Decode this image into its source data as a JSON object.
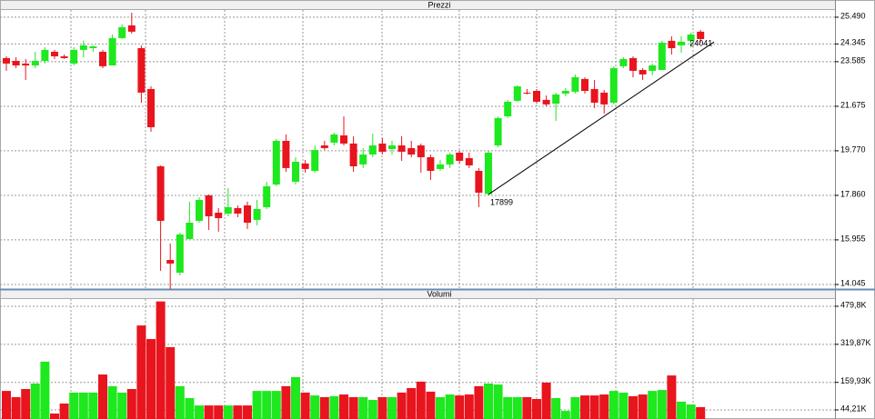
{
  "chart_data": [
    {
      "type": "candlestick",
      "title": "Prezzi",
      "open": [
        23740,
        23620,
        23505,
        23425,
        23620,
        24010,
        23815,
        23505,
        24090,
        24165,
        24010,
        23425,
        24595,
        25140,
        24165,
        22415,
        19105,
        15095,
        14550,
        15990,
        16770,
        17860,
        17120,
        17080,
        17315,
        17430,
        16810,
        17355,
        18325,
        20195,
        18445,
        19225,
        18910,
        20000,
        20120,
        20430,
        20080,
        19185,
        19610,
        20080,
        19845,
        20000,
        19885,
        20000,
        19495,
        18990,
        19185,
        19690,
        19455,
        18910,
        17920,
        20000,
        21245,
        21910,
        22260,
        22335,
        21950,
        21790,
        22220,
        22300,
        22845,
        22415,
        22260,
        21830,
        23390,
        23740,
        23230,
        23195,
        23230,
        24480,
        24285,
        24480,
        24870
      ],
      "high": [
        23815,
        23775,
        23700,
        24010,
        24205,
        24090,
        23895,
        24205,
        24480,
        24285,
        24090,
        24750,
        25180,
        25685,
        24285,
        22530,
        19145,
        15795,
        16265,
        17590,
        17780,
        17900,
        17315,
        18170,
        17430,
        17590,
        17665,
        18445,
        20275,
        20470,
        19495,
        19380,
        20000,
        20195,
        20545,
        21245,
        20390,
        19885,
        20505,
        20315,
        20195,
        20390,
        20195,
        20080,
        19610,
        19380,
        19690,
        19770,
        19690,
        19030,
        19770,
        21245,
        21950,
        22570,
        22415,
        22415,
        22140,
        22260,
        22455,
        23040,
        22920,
        22805,
        22375,
        23390,
        23775,
        23815,
        23310,
        23505,
        24480,
        24670,
        24670,
        24830,
        24945
      ],
      "low": [
        23195,
        23310,
        22805,
        23310,
        23505,
        23700,
        23700,
        23425,
        23775,
        24010,
        23310,
        23425,
        24555,
        24790,
        21830,
        20585,
        14630,
        13850,
        14435,
        15990,
        16690,
        16380,
        16305,
        16965,
        16925,
        16420,
        16575,
        17275,
        18250,
        18870,
        18325,
        18835,
        18835,
        19805,
        20000,
        20000,
        18870,
        19030,
        19495,
        19610,
        19610,
        19340,
        19495,
        18835,
        18520,
        18910,
        19030,
        19225,
        19030,
        17355,
        17899,
        19925,
        21170,
        21870,
        22180,
        21790,
        21675,
        21050,
        22105,
        22220,
        22220,
        21600,
        21365,
        21755,
        23310,
        22920,
        22805,
        23000,
        23230,
        23895,
        23970,
        24205,
        24400
      ],
      "close": [
        23505,
        23425,
        23425,
        23620,
        24090,
        23815,
        23740,
        24090,
        24285,
        24240,
        23390,
        24595,
        25060,
        24870,
        22260,
        20780,
        16770,
        14940,
        16185,
        16690,
        17665,
        16965,
        16885,
        17355,
        17080,
        16690,
        17275,
        18250,
        20195,
        19030,
        19300,
        18990,
        19805,
        19885,
        20470,
        20080,
        19105,
        19610,
        20000,
        19730,
        20000,
        19730,
        19610,
        19495,
        18910,
        19185,
        19610,
        19340,
        19145,
        17975,
        19690,
        21170,
        21870,
        22530,
        22220,
        21870,
        21755,
        22180,
        22335,
        22920,
        22335,
        21830,
        21755,
        23310,
        23700,
        23195,
        23040,
        23425,
        24400,
        24165,
        24440,
        24750,
        24555
      ],
      "up_color": "#1ee81e",
      "down_color": "#e8141e",
      "ylim": [
        13850,
        25760
      ],
      "yticks": [
        {
          "value": 25490,
          "label": "25.490"
        },
        {
          "value": 24345,
          "label": "24.345"
        },
        {
          "value": 23585,
          "label": "23.585"
        },
        {
          "value": 21675,
          "label": "21.675"
        },
        {
          "value": 19770,
          "label": "19.770"
        },
        {
          "value": 17860,
          "label": "17.860"
        },
        {
          "value": 15955,
          "label": "15.955"
        },
        {
          "value": 14045,
          "label": "14.045"
        }
      ],
      "grid": true,
      "annotations": [
        {
          "candle": 50,
          "value": 17899
        },
        {
          "candle": 72,
          "value": 24041
        }
      ]
    },
    {
      "type": "volume",
      "title": "Volumi",
      "values": [
        124000,
        98000,
        132000,
        155000,
        247000,
        29000,
        71000,
        117000,
        117000,
        117000,
        193000,
        144000,
        117000,
        132000,
        399000,
        342000,
        500000,
        308000,
        144000,
        94000,
        63000,
        63000,
        63000,
        63000,
        63000,
        63000,
        124000,
        124000,
        124000,
        144000,
        182000,
        117000,
        105000,
        98000,
        102000,
        109000,
        98000,
        98000,
        86000,
        98000,
        98000,
        117000,
        136000,
        163000,
        121000,
        98000,
        109000,
        105000,
        109000,
        144000,
        155000,
        151000,
        98000,
        98000,
        98000,
        90000,
        159000,
        94000,
        40000,
        98000,
        105000,
        105000,
        109000,
        124000,
        117000,
        102000,
        109000,
        124000,
        128000,
        189000,
        79000,
        67000,
        56000
      ],
      "ylim": [
        6000,
        506400
      ],
      "yticks": [
        {
          "value": 479800,
          "label": "479,8K"
        },
        {
          "value": 319870,
          "label": "319,87K"
        },
        {
          "value": 159930,
          "label": "159,93K"
        },
        {
          "value": 44210,
          "label": "44,21K"
        }
      ],
      "grid": true
    }
  ]
}
